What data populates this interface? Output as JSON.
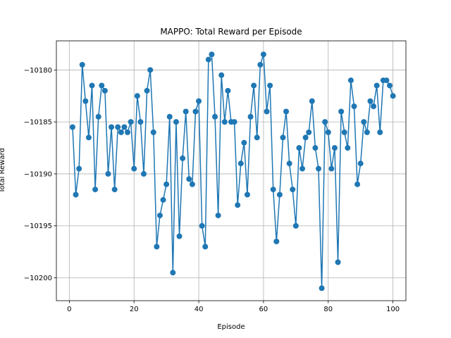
{
  "chart_data": {
    "type": "line",
    "title": "MAPPO: Total Reward per Episode",
    "xlabel": "Episode",
    "ylabel": "Total Reward",
    "xlim": [
      -4,
      104
    ],
    "ylim": [
      -10202.2,
      -10177.2
    ],
    "xticks": [
      0,
      20,
      40,
      60,
      80,
      100
    ],
    "yticks": [
      -10200,
      -10195,
      -10190,
      -10185,
      -10180
    ],
    "grid": true,
    "legend": "none",
    "series": [
      {
        "color": "#1f77b4",
        "marker": "circle",
        "x": [
          1,
          2,
          3,
          4,
          5,
          6,
          7,
          8,
          9,
          10,
          11,
          12,
          13,
          14,
          15,
          16,
          17,
          18,
          19,
          20,
          21,
          22,
          23,
          24,
          25,
          26,
          27,
          28,
          29,
          30,
          31,
          32,
          33,
          34,
          35,
          36,
          37,
          38,
          39,
          40,
          41,
          42,
          43,
          44,
          45,
          46,
          47,
          48,
          49,
          50,
          51,
          52,
          53,
          54,
          55,
          56,
          57,
          58,
          59,
          60,
          61,
          62,
          63,
          64,
          65,
          66,
          67,
          68,
          69,
          70,
          71,
          72,
          73,
          74,
          75,
          76,
          77,
          78,
          79,
          80,
          81,
          82,
          83,
          84,
          85,
          86,
          87,
          88,
          89,
          90,
          91,
          92,
          93,
          94,
          95,
          96,
          97,
          98,
          99,
          100
        ],
        "y": [
          -10185.5,
          -10192,
          -10189.5,
          -10179.5,
          -10183,
          -10186.5,
          -10181.5,
          -10191.5,
          -10184.5,
          -10181.5,
          -10182,
          -10190,
          -10185.5,
          -10191.5,
          -10185.5,
          -10186,
          -10185.5,
          -10186,
          -10185,
          -10189.5,
          -10182.5,
          -10185,
          -10190,
          -10182,
          -10180,
          -10186,
          -10197,
          -10194,
          -10192.5,
          -10191,
          -10184.5,
          -10199.5,
          -10185,
          -10196,
          -10188.5,
          -10184,
          -10190.5,
          -10191,
          -10184,
          -10183,
          -10195,
          -10197,
          -10179,
          -10178.5,
          -10184.5,
          -10194,
          -10180.5,
          -10185,
          -10182,
          -10185,
          -10185,
          -10193,
          -10189,
          -10187,
          -10192,
          -10184.5,
          -10181.5,
          -10186.5,
          -10179.5,
          -10178.5,
          -10184,
          -10181.5,
          -10191.5,
          -10196.5,
          -10192,
          -10186.5,
          -10184,
          -10189,
          -10191.5,
          -10195,
          -10187.5,
          -10189.5,
          -10186.5,
          -10186,
          -10183,
          -10187.5,
          -10189.5,
          -10201,
          -10185,
          -10186,
          -10189.5,
          -10187.5,
          -10198.5,
          -10184,
          -10186,
          -10187.5,
          -10181,
          -10183.5,
          -10191,
          -10189,
          -10185,
          -10186,
          -10183,
          -10183.5,
          -10181.5,
          -10186,
          -10181,
          -10181,
          -10181.5,
          -10182.5
        ]
      }
    ]
  }
}
